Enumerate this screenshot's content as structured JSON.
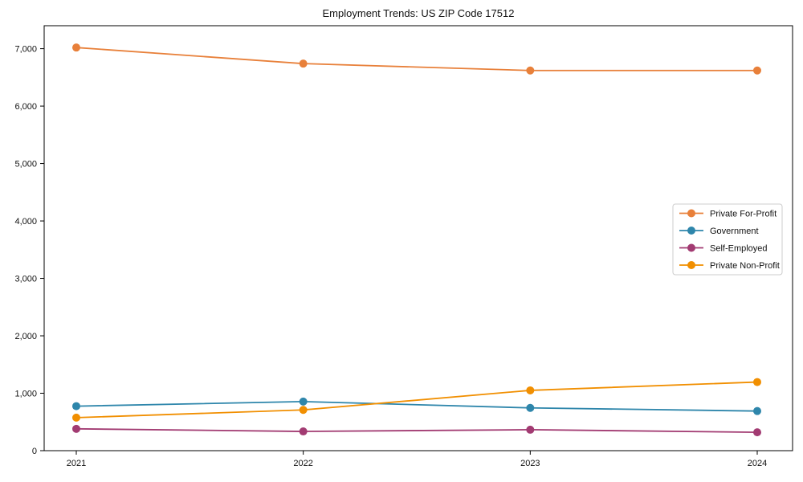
{
  "chart_data": {
    "type": "line",
    "title": "Employment Trends: US ZIP Code 17512",
    "categories": [
      "2021",
      "2022",
      "2023",
      "2024"
    ],
    "series": [
      {
        "name": "Private For-Profit",
        "color": "#E8803A",
        "values": [
          7020,
          6740,
          6620,
          6620
        ]
      },
      {
        "name": "Government",
        "color": "#2E86AB",
        "values": [
          775,
          855,
          745,
          690
        ]
      },
      {
        "name": "Self-Employed",
        "color": "#A23B72",
        "values": [
          380,
          335,
          365,
          320
        ]
      },
      {
        "name": "Private Non-Profit",
        "color": "#F18F01",
        "values": [
          575,
          710,
          1050,
          1195
        ]
      }
    ],
    "xlabel": "",
    "ylabel": "",
    "ylim": [
      0,
      7400
    ],
    "yticks": [
      0,
      1000,
      2000,
      3000,
      4000,
      5000,
      6000,
      7000
    ],
    "ytick_labels": [
      "0",
      "1,000",
      "2,000",
      "3,000",
      "4,000",
      "5,000",
      "6,000",
      "7,000"
    ],
    "grid": false,
    "legend_position": "middle-right",
    "colors": {
      "spine": "#000000",
      "legend_border": "#cccccc",
      "background": "#ffffff"
    }
  }
}
